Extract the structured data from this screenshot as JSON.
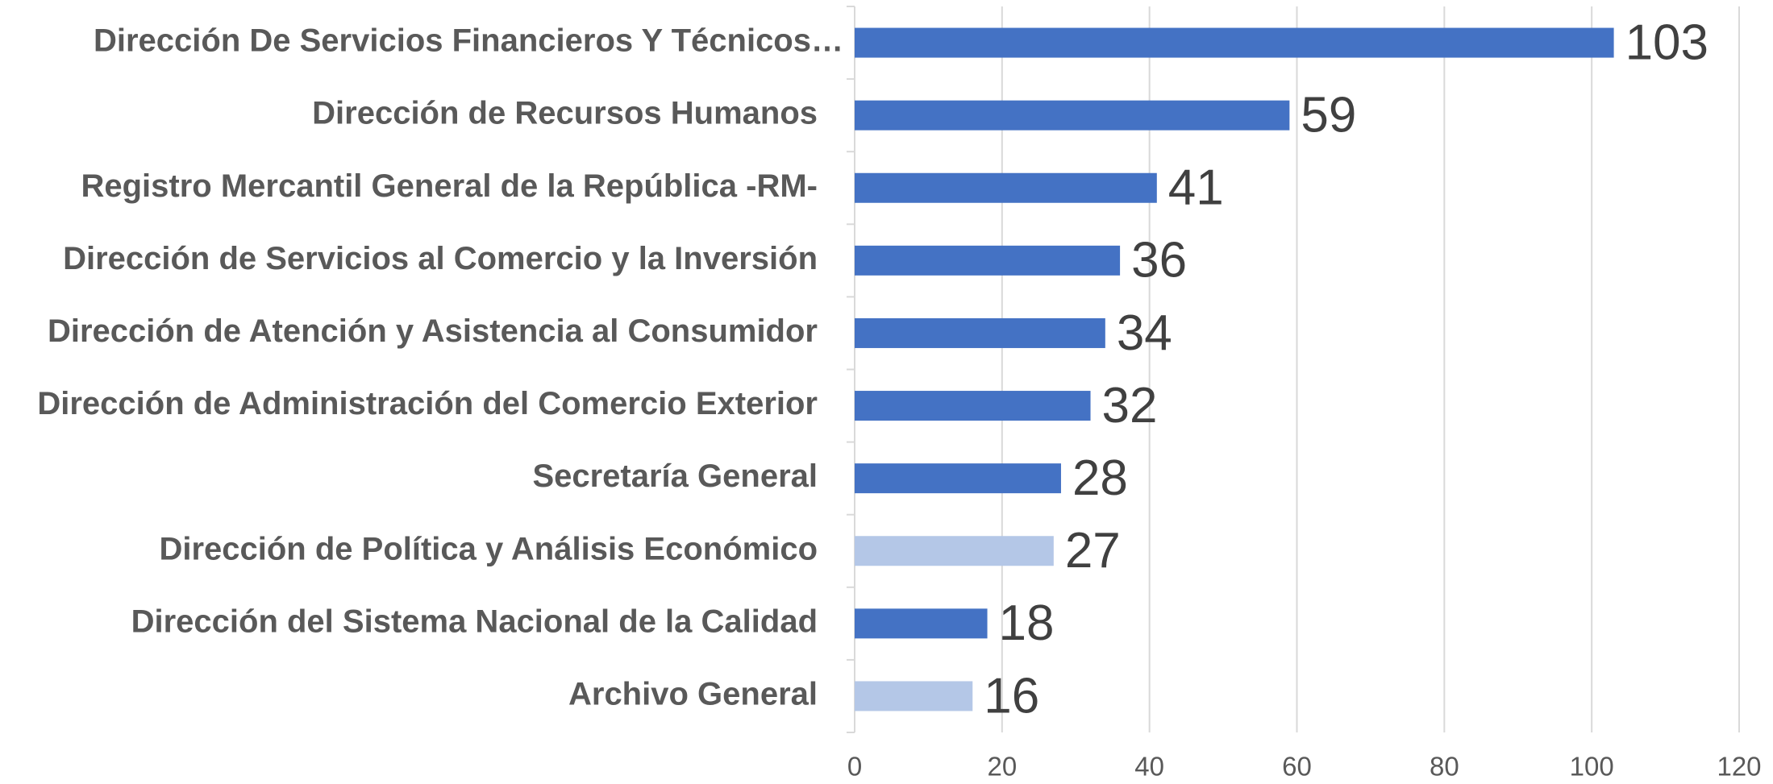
{
  "chart_data": {
    "type": "bar",
    "orientation": "horizontal",
    "categories": [
      "Dirección De Servicios Financieros Y Técnicos…",
      "Dirección de Recursos Humanos",
      "Registro Mercantil General de la República -RM-",
      "Dirección de Servicios al Comercio y la Inversión",
      "Dirección de Atención y Asistencia al Consumidor",
      "Dirección de Administración del Comercio Exterior",
      "Secretaría General",
      "Dirección de Política y Análisis Económico",
      "Dirección del Sistema Nacional de la Calidad",
      "Archivo General"
    ],
    "values": [
      103,
      59,
      41,
      36,
      34,
      32,
      28,
      27,
      18,
      16
    ],
    "colors": [
      "#4472c4",
      "#4472c4",
      "#4472c4",
      "#4472c4",
      "#4472c4",
      "#4472c4",
      "#4472c4",
      "#b4c7e7",
      "#4472c4",
      "#b4c7e7"
    ],
    "xlim": [
      0,
      120
    ],
    "xticks": [
      0,
      20,
      40,
      60,
      80,
      100,
      120
    ],
    "grid": true
  }
}
